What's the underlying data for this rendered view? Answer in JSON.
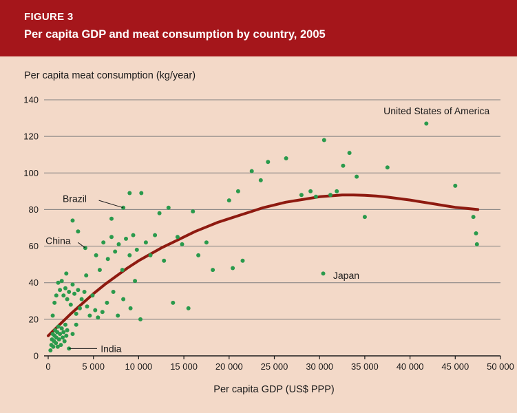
{
  "header": {
    "figure_label": "FIGURE 3",
    "figure_title": "Per capita GDP and meat consumption by country, 2005"
  },
  "colors": {
    "header_bg": "#a5161b",
    "page_bg": "#f3d9c8",
    "point": "#2a9a4c",
    "trend": "#8e1a10",
    "grid": "#7f7f7f",
    "axis": "#1a1a1a",
    "text": "#1a1a1a"
  },
  "chart_data": {
    "type": "scatter",
    "title": "Per capita GDP and meat consumption by country, 2005",
    "xlabel": "Per capita GDP (US$ PPP)",
    "ylabel": "Per capita meat consumption (kg/year)",
    "xlim": [
      0,
      50000
    ],
    "ylim": [
      0,
      140
    ],
    "xticks": [
      0,
      5000,
      10000,
      15000,
      20000,
      25000,
      30000,
      35000,
      40000,
      45000,
      50000
    ],
    "xtick_labels": [
      "0",
      "5 000",
      "10 000",
      "15 000",
      "20 000",
      "25 000",
      "30 000",
      "35 000",
      "40 000",
      "45 000",
      "50 000"
    ],
    "yticks": [
      0,
      20,
      40,
      60,
      80,
      100,
      120,
      140
    ],
    "grid": "horizontal",
    "legend": "none",
    "points": [
      [
        250,
        3
      ],
      [
        350,
        6
      ],
      [
        420,
        9
      ],
      [
        500,
        12
      ],
      [
        560,
        5
      ],
      [
        650,
        8
      ],
      [
        700,
        11
      ],
      [
        780,
        14
      ],
      [
        850,
        7
      ],
      [
        900,
        10
      ],
      [
        1000,
        13
      ],
      [
        1060,
        5
      ],
      [
        1120,
        16
      ],
      [
        1200,
        9
      ],
      [
        1300,
        12
      ],
      [
        1400,
        6
      ],
      [
        1500,
        15
      ],
      [
        1600,
        10
      ],
      [
        1700,
        13
      ],
      [
        1800,
        8
      ],
      [
        1900,
        17
      ],
      [
        2000,
        11
      ],
      [
        2100,
        14
      ],
      [
        2300,
        4
      ],
      [
        2700,
        12
      ],
      [
        3100,
        17
      ],
      [
        500,
        22
      ],
      [
        700,
        29
      ],
      [
        900,
        33
      ],
      [
        1100,
        40
      ],
      [
        1300,
        36
      ],
      [
        1500,
        41
      ],
      [
        1700,
        33
      ],
      [
        1900,
        37
      ],
      [
        2000,
        45
      ],
      [
        2100,
        31
      ],
      [
        2300,
        35
      ],
      [
        2500,
        28
      ],
      [
        2700,
        39
      ],
      [
        2900,
        34
      ],
      [
        3100,
        23
      ],
      [
        3300,
        36
      ],
      [
        3500,
        26
      ],
      [
        3700,
        31
      ],
      [
        4000,
        35
      ],
      [
        4200,
        44
      ],
      [
        4300,
        27
      ],
      [
        4600,
        22
      ],
      [
        4900,
        33
      ],
      [
        5200,
        25
      ],
      [
        5500,
        21
      ],
      [
        2700,
        74
      ],
      [
        3300,
        68
      ],
      [
        4100,
        59
      ],
      [
        5300,
        55
      ],
      [
        5700,
        47
      ],
      [
        6100,
        62
      ],
      [
        6600,
        53
      ],
      [
        7000,
        65
      ],
      [
        7000,
        75
      ],
      [
        7400,
        57
      ],
      [
        7800,
        61
      ],
      [
        8200,
        47
      ],
      [
        8600,
        64
      ],
      [
        9000,
        55
      ],
      [
        9400,
        66
      ],
      [
        9800,
        58
      ],
      [
        6000,
        24
      ],
      [
        6500,
        29
      ],
      [
        7200,
        35
      ],
      [
        7700,
        22
      ],
      [
        8300,
        31
      ],
      [
        9100,
        26
      ],
      [
        9600,
        41
      ],
      [
        10200,
        20
      ],
      [
        8300,
        81
      ],
      [
        9000,
        89
      ],
      [
        10300,
        89
      ],
      [
        10800,
        62
      ],
      [
        11300,
        55
      ],
      [
        11800,
        66
      ],
      [
        12300,
        78
      ],
      [
        12800,
        52
      ],
      [
        13300,
        81
      ],
      [
        13800,
        29
      ],
      [
        14300,
        65
      ],
      [
        14800,
        61
      ],
      [
        15500,
        26
      ],
      [
        16000,
        79
      ],
      [
        16600,
        55
      ],
      [
        17500,
        62
      ],
      [
        18200,
        47
      ],
      [
        20000,
        85
      ],
      [
        20400,
        48
      ],
      [
        21000,
        90
      ],
      [
        21500,
        52
      ],
      [
        22500,
        101
      ],
      [
        23500,
        96
      ],
      [
        24300,
        106
      ],
      [
        26300,
        108
      ],
      [
        28000,
        88
      ],
      [
        29000,
        90
      ],
      [
        29600,
        87
      ],
      [
        30400,
        45
      ],
      [
        30500,
        118
      ],
      [
        31200,
        88
      ],
      [
        31900,
        90
      ],
      [
        32600,
        104
      ],
      [
        33300,
        111
      ],
      [
        34100,
        98
      ],
      [
        35000,
        76
      ],
      [
        37500,
        103
      ],
      [
        41800,
        127
      ],
      [
        45000,
        93
      ],
      [
        47000,
        76
      ],
      [
        47300,
        67
      ],
      [
        47400,
        61
      ]
    ],
    "trend": [
      [
        0,
        11
      ],
      [
        1250,
        17
      ],
      [
        2500,
        23
      ],
      [
        3750,
        28.5
      ],
      [
        5000,
        34
      ],
      [
        6250,
        39
      ],
      [
        7500,
        43.5
      ],
      [
        8750,
        48
      ],
      [
        10000,
        52
      ],
      [
        11250,
        55.5
      ],
      [
        12500,
        59
      ],
      [
        13750,
        62
      ],
      [
        15000,
        65
      ],
      [
        16250,
        68
      ],
      [
        17500,
        70.5
      ],
      [
        18750,
        73
      ],
      [
        20000,
        75
      ],
      [
        21250,
        77
      ],
      [
        22500,
        79
      ],
      [
        23750,
        81
      ],
      [
        25000,
        82.5
      ],
      [
        26250,
        84
      ],
      [
        27500,
        85
      ],
      [
        28750,
        86
      ],
      [
        30000,
        87
      ],
      [
        31250,
        87.5
      ],
      [
        32500,
        88
      ],
      [
        33750,
        88
      ],
      [
        35000,
        87.8
      ],
      [
        36250,
        87.4
      ],
      [
        37500,
        86.8
      ],
      [
        38750,
        86
      ],
      [
        40000,
        85.2
      ],
      [
        41250,
        84.2
      ],
      [
        42500,
        83.2
      ],
      [
        43750,
        82.2
      ],
      [
        45000,
        81.2
      ],
      [
        46250,
        80.6
      ],
      [
        47500,
        80
      ]
    ],
    "annotations": [
      {
        "label": "United States of America",
        "point": [
          41800,
          127
        ],
        "label_pos": [
          48800,
          134
        ],
        "anchor": "end",
        "leader": false
      },
      {
        "label": "Brazil",
        "point": [
          8300,
          81
        ],
        "label_pos": [
          1600,
          86
        ],
        "anchor": "start",
        "leader": true,
        "leader_from": [
          5600,
          85
        ]
      },
      {
        "label": "China",
        "point": [
          4100,
          59
        ],
        "label_pos": [
          -300,
          63
        ],
        "anchor": "start",
        "leader": true,
        "leader_from": [
          3300,
          62
        ]
      },
      {
        "label": "Japan",
        "point": [
          30400,
          45
        ],
        "label_pos": [
          31500,
          44
        ],
        "anchor": "start",
        "leader": false
      },
      {
        "label": "India",
        "point": [
          2300,
          4
        ],
        "label_pos": [
          5800,
          4
        ],
        "anchor": "start",
        "leader": true,
        "leader_from": [
          5400,
          4
        ]
      }
    ]
  }
}
